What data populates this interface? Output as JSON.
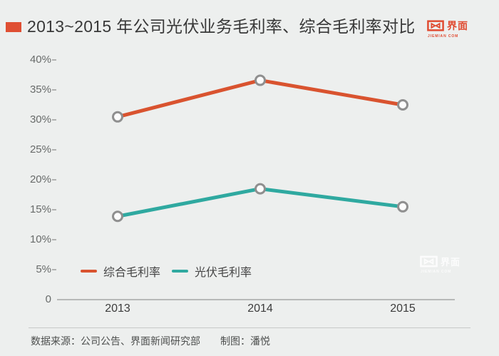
{
  "title": {
    "text": "2013~2015 年公司光伏业务毛利率、综合毛利率对比"
  },
  "logo": {
    "cn": "界面",
    "en": "JIEMIAN COM"
  },
  "watermark": {
    "cn": "界面",
    "en": "JIEMIAN COM"
  },
  "colors": {
    "background": "#edefee",
    "accent_red": "#df4f33",
    "logo_red": "#e04b31",
    "series_orange": "#d9532f",
    "series_teal": "#2fa9a0",
    "axis_line": "#b7b9b8",
    "marker_border": "#8f8f8f"
  },
  "chart_data": {
    "type": "line",
    "title": "2013~2015 年公司光伏业务毛利率、综合毛利率对比",
    "categories": [
      "2013",
      "2014",
      "2015"
    ],
    "series": [
      {
        "name": "综合毛利率",
        "color": "#d9532f",
        "values": [
          30.5,
          36.6,
          32.5
        ]
      },
      {
        "name": "光伏毛利率",
        "color": "#2fa9a0",
        "values": [
          13.9,
          18.5,
          15.5
        ]
      }
    ],
    "yticks": [
      "40%",
      "35%",
      "30%",
      "25%",
      "20%",
      "15%",
      "10%",
      "5%",
      "0"
    ],
    "ytick_values": [
      40,
      35,
      30,
      25,
      20,
      15,
      10,
      5,
      0
    ],
    "ylim": [
      0,
      42
    ],
    "xlabel": "",
    "ylabel": "",
    "grid": false,
    "legend_position": "bottom-left",
    "marker": "open-circle"
  },
  "legend": {
    "items": [
      {
        "label": "综合毛利率",
        "color": "#d9532f"
      },
      {
        "label": "光伏毛利率",
        "color": "#2fa9a0"
      }
    ]
  },
  "footer": {
    "source": "数据来源：公司公告、界面新闻研究部",
    "credit": "制图：潘悦"
  }
}
